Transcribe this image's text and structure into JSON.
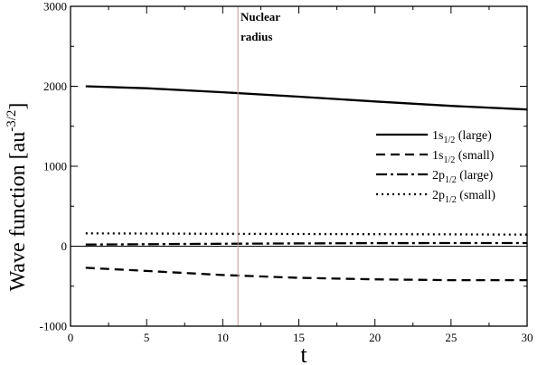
{
  "chart_data": {
    "type": "line",
    "xlabel": "t",
    "ylabel": "Wave function [au",
    "ylabel_sup": "-3/2",
    "ylabel_close": "]",
    "xlim": [
      0,
      30
    ],
    "ylim": [
      -1000,
      3000
    ],
    "x_ticks": [
      0,
      5,
      10,
      15,
      20,
      25,
      30
    ],
    "y_ticks": [
      -1000,
      0,
      1000,
      2000,
      3000
    ],
    "x_tick_labels": [
      "0",
      "5",
      "10",
      "15",
      "20",
      "25",
      "30"
    ],
    "y_tick_labels": [
      "-1000",
      "0",
      "1000",
      "2000",
      "3000"
    ],
    "grid": false,
    "zero_line": true,
    "annotation": {
      "line1": "Nuclear",
      "line2": "radius",
      "x": 11
    },
    "legend_position": "right",
    "series": [
      {
        "label_main": "1s",
        "label_sub": "1/2",
        "label_rest": " (large)",
        "style": "solid",
        "x": [
          1,
          5,
          10,
          15,
          20,
          25,
          30
        ],
        "y": [
          2000,
          1975,
          1925,
          1870,
          1810,
          1755,
          1710
        ]
      },
      {
        "label_main": "1s",
        "label_sub": "1/2",
        "label_rest": " (small)",
        "style": "dashed",
        "x": [
          1,
          5,
          10,
          15,
          20,
          25,
          30
        ],
        "y": [
          -270,
          -310,
          -360,
          -395,
          -415,
          -425,
          -425
        ]
      },
      {
        "label_main": "2p",
        "label_sub": "1/2",
        "label_rest": " (large)",
        "style": "dashdot",
        "x": [
          1,
          5,
          10,
          15,
          20,
          25,
          30
        ],
        "y": [
          20,
          25,
          30,
          35,
          38,
          40,
          40
        ]
      },
      {
        "label_main": "2p",
        "label_sub": "1/2",
        "label_rest": " (small)",
        "style": "dotted",
        "x": [
          1,
          5,
          10,
          15,
          20,
          25,
          30
        ],
        "y": [
          160,
          158,
          155,
          152,
          150,
          148,
          145
        ]
      }
    ]
  }
}
